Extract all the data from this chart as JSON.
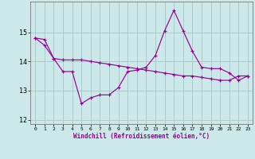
{
  "xlabel": "Windchill (Refroidissement éolien,°C)",
  "bg_color": "#cce8e8",
  "grid_color": "#aacccc",
  "line_color": "#990099",
  "line1_y": [
    14.8,
    14.55,
    14.1,
    13.65,
    13.65,
    12.55,
    12.75,
    12.85,
    12.85,
    13.1,
    13.65,
    13.7,
    13.8,
    14.2,
    15.05,
    15.75,
    15.05,
    14.35,
    13.8,
    13.75,
    13.75,
    13.6,
    13.35,
    13.5
  ],
  "line2_y": [
    14.8,
    14.75,
    14.1,
    14.05,
    14.05,
    14.05,
    14.0,
    13.95,
    13.9,
    13.85,
    13.8,
    13.75,
    13.7,
    13.65,
    13.6,
    13.55,
    13.5,
    13.5,
    13.45,
    13.4,
    13.35,
    13.35,
    13.5,
    13.5
  ],
  "ylim": [
    11.85,
    16.05
  ],
  "yticks": [
    12,
    13,
    14,
    15
  ],
  "xticks": [
    0,
    1,
    2,
    3,
    4,
    5,
    6,
    7,
    8,
    9,
    10,
    11,
    12,
    13,
    14,
    15,
    16,
    17,
    18,
    19,
    20,
    21,
    22,
    23
  ]
}
